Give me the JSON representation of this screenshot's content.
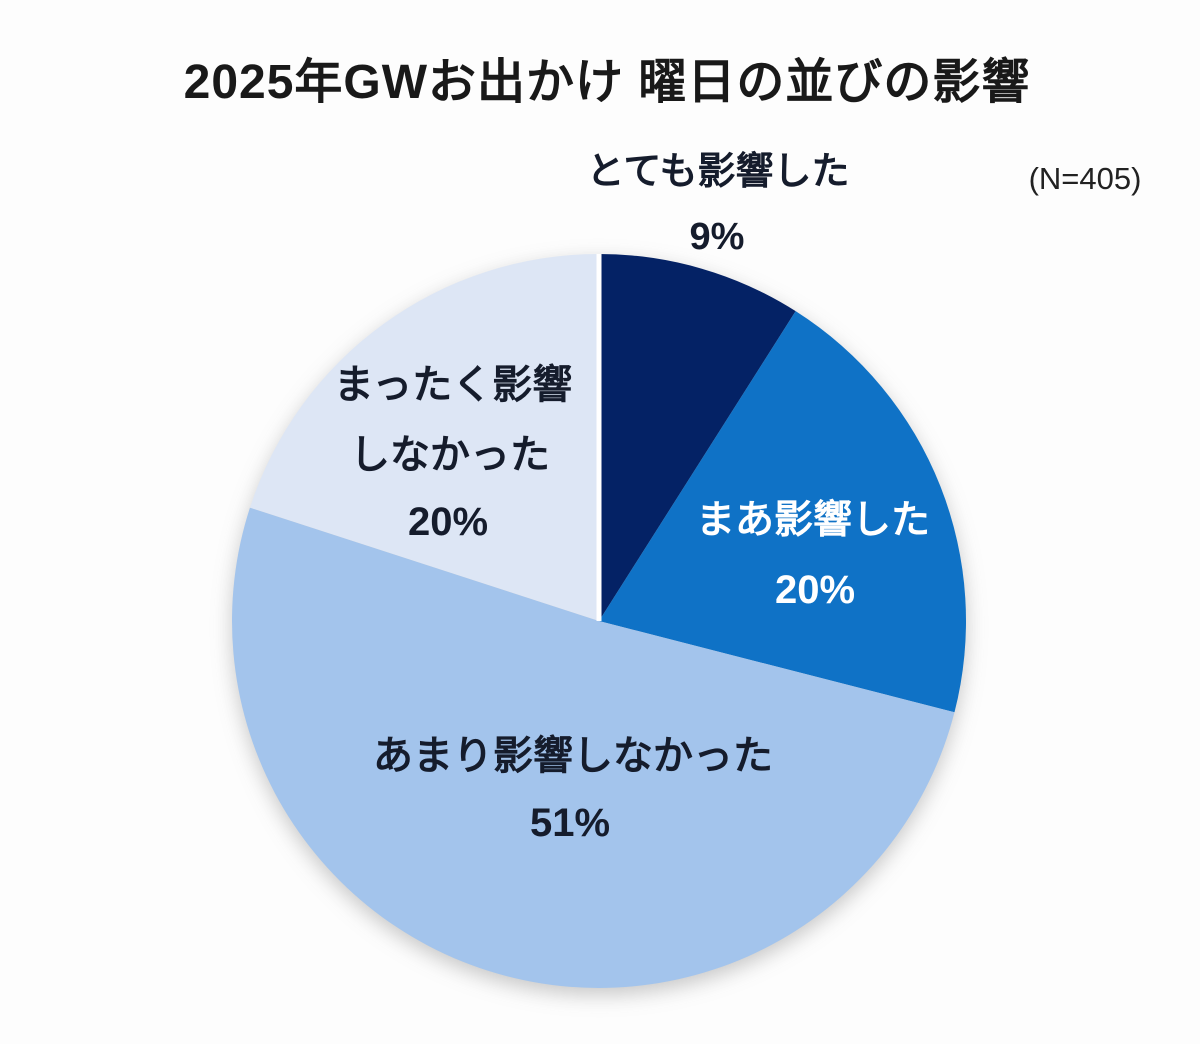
{
  "page": {
    "background": "#fdfdfd"
  },
  "header": {
    "title": "2025年GWお出かけ 曜日の並びの影響",
    "sample_note": "(N=405)"
  },
  "chart_data": {
    "type": "pie",
    "title": "2025年GWお出かけ 曜日の並びの影響",
    "sample_note": "(N=405)",
    "units": "%",
    "start_angle_deg": 0,
    "direction": "clockwise-from-top",
    "legend": "none",
    "slices": [
      {
        "label": "とても影響した",
        "value": 9,
        "value_label": "9%",
        "color": "#042265",
        "label_color": "#151c2c",
        "label_position": "outside-top"
      },
      {
        "label": "まあ影響した",
        "value": 20,
        "value_label": "20%",
        "color": "#0f72c6",
        "label_color": "#ffffff",
        "label_position": "inside"
      },
      {
        "label": "あまり影響しなかった",
        "value": 51,
        "value_label": "51%",
        "color": "#a3c4ec",
        "label_color": "#151c2c",
        "label_position": "inside"
      },
      {
        "label": "まったく影響しなかった",
        "label_lines": [
          "まったく影響",
          "しなかった"
        ],
        "value": 20,
        "value_label": "20%",
        "color": "#dde6f5",
        "label_color": "#151c2c",
        "label_position": "inside"
      }
    ],
    "separator_line": {
      "angle_deg": 0,
      "color": "#ffffff",
      "width": 5
    }
  }
}
